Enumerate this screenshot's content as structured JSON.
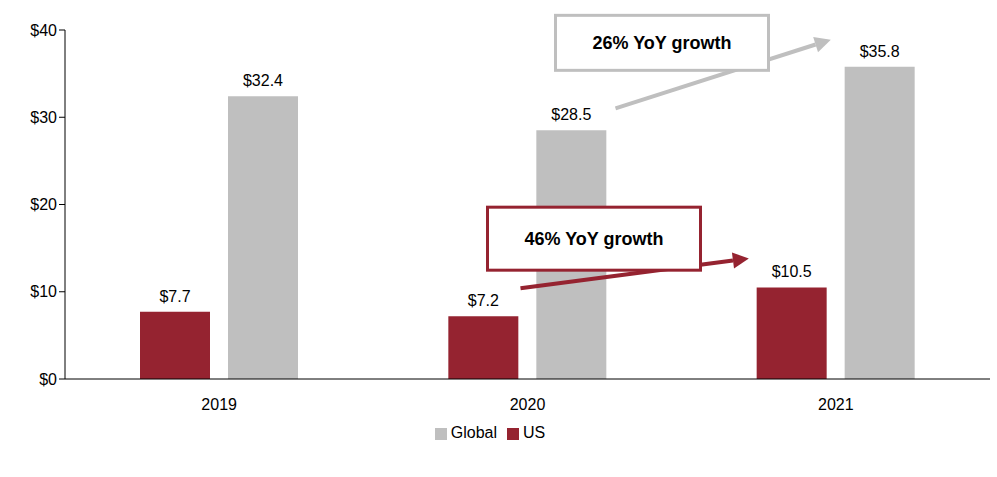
{
  "chart_data": {
    "type": "bar",
    "categories": [
      "2019",
      "2020",
      "2021"
    ],
    "series": [
      {
        "name": "US",
        "color": "#952330",
        "values": [
          7.7,
          7.2,
          10.5
        ],
        "value_labels": [
          "$7.7",
          "$7.2",
          "$10.5"
        ]
      },
      {
        "name": "Global",
        "color": "#BFBFBF",
        "values": [
          32.4,
          28.5,
          35.8
        ],
        "value_labels": [
          "$32.4",
          "$28.5",
          "$35.8"
        ]
      }
    ],
    "ylim": [
      0,
      40
    ],
    "yticks": [
      {
        "value": 0,
        "label": "$0"
      },
      {
        "value": 10,
        "label": "$10"
      },
      {
        "value": 20,
        "label": "$20"
      },
      {
        "value": 30,
        "label": "$30"
      },
      {
        "value": 40,
        "label": "$40"
      }
    ],
    "data_labels": true,
    "legend": "bottom",
    "grid": false,
    "annotations": [
      {
        "text": "26% YoY growth",
        "series": "Global",
        "from": "2020",
        "to": "2021"
      },
      {
        "text": "46% YoY growth",
        "series": "US",
        "from": "2020",
        "to": "2021"
      }
    ]
  }
}
